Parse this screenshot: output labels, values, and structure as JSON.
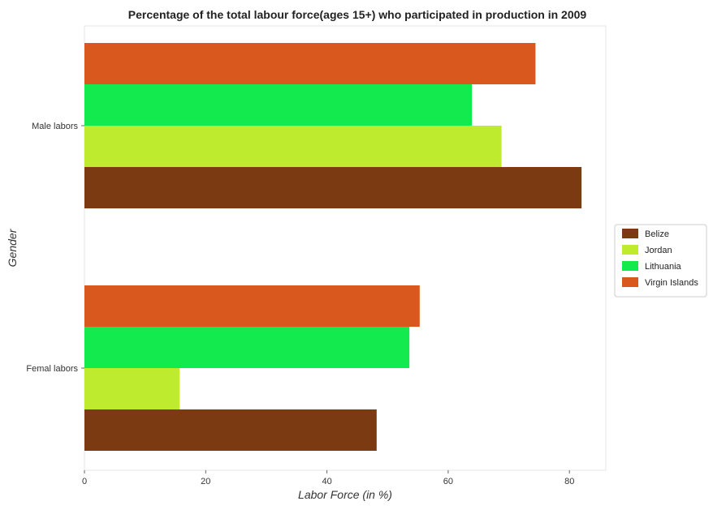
{
  "chart_data": {
    "type": "bar",
    "orientation": "horizontal",
    "title": "Percentage of the total labour force(ages 15+) who participated in production in 2009",
    "xlabel": "Labor Force (in %)",
    "ylabel": "Gender",
    "xlim": [
      0,
      86
    ],
    "xticks": [
      0,
      20,
      40,
      60,
      80
    ],
    "categories": [
      "Femal labors",
      "Male labors"
    ],
    "series": [
      {
        "name": "Belize",
        "color": "#7B3A12",
        "values": [
          48.2,
          82.0
        ]
      },
      {
        "name": "Jordan",
        "color": "#BEEB2D",
        "values": [
          15.7,
          68.8
        ]
      },
      {
        "name": "Lithuania",
        "color": "#13EA4E",
        "values": [
          53.6,
          63.9
        ]
      },
      {
        "name": "Virgin Islands",
        "color": "#D9581E",
        "values": [
          55.3,
          74.4
        ]
      }
    ],
    "grid": false,
    "legend_position": "right"
  }
}
